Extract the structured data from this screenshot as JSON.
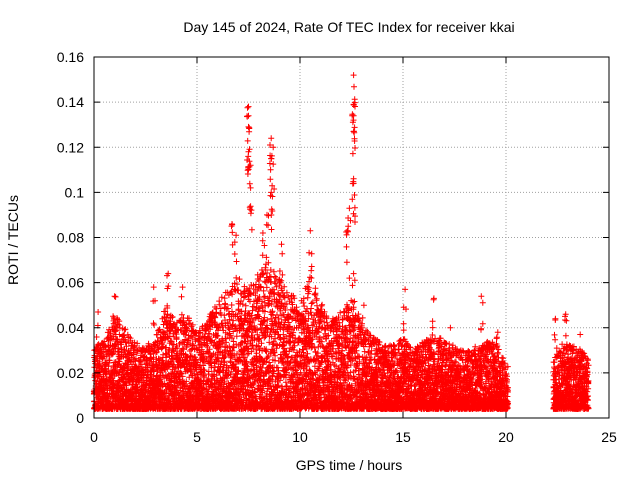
{
  "chart_data": {
    "type": "scatter",
    "title": "Day 145 of 2024, Rate Of TEC Index for receiver kkai",
    "xlabel": "GPS time / hours",
    "ylabel": "ROTI / TECUs",
    "xlim": [
      0,
      25
    ],
    "ylim": [
      0,
      0.16
    ],
    "xticks": [
      0,
      5,
      10,
      15,
      20,
      25
    ],
    "yticks": [
      0,
      0.02,
      0.04,
      0.06,
      0.08,
      0.1,
      0.12,
      0.14,
      0.16
    ],
    "xtick_labels": [
      "0",
      "5",
      "10",
      "15",
      "20",
      "25"
    ],
    "ytick_labels": [
      "0",
      "0.02",
      "0.04",
      "0.06",
      "0.08",
      "0.1",
      "0.12",
      "0.14",
      "0.16"
    ],
    "grid": true,
    "marker": "+",
    "color": "#ff0000",
    "data_gap_hours": [
      20.1,
      22.3
    ],
    "notable_points": [
      {
        "x": 12.6,
        "y": 0.152
      },
      {
        "x": 7.5,
        "y": 0.138
      },
      {
        "x": 12.6,
        "y": 0.139
      },
      {
        "x": 7.5,
        "y": 0.134
      },
      {
        "x": 12.6,
        "y": 0.134
      },
      {
        "x": 7.5,
        "y": 0.129
      },
      {
        "x": 12.6,
        "y": 0.127
      },
      {
        "x": 8.6,
        "y": 0.124
      },
      {
        "x": 8.7,
        "y": 0.12
      },
      {
        "x": 7.5,
        "y": 0.118
      },
      {
        "x": 8.6,
        "y": 0.115
      },
      {
        "x": 7.6,
        "y": 0.112
      },
      {
        "x": 7.6,
        "y": 0.102
      },
      {
        "x": 8.6,
        "y": 0.1
      },
      {
        "x": 12.6,
        "y": 0.106
      },
      {
        "x": 12.6,
        "y": 0.104
      },
      {
        "x": 12.4,
        "y": 0.093
      },
      {
        "x": 8.4,
        "y": 0.09
      },
      {
        "x": 6.7,
        "y": 0.086
      },
      {
        "x": 10.5,
        "y": 0.083
      },
      {
        "x": 12.3,
        "y": 0.083
      },
      {
        "x": 8.2,
        "y": 0.082
      },
      {
        "x": 6.9,
        "y": 0.081
      },
      {
        "x": 9.1,
        "y": 0.077
      },
      {
        "x": 12.4,
        "y": 0.062
      },
      {
        "x": 12.6,
        "y": 0.064
      },
      {
        "x": 3.6,
        "y": 0.064
      },
      {
        "x": 2.9,
        "y": 0.058
      },
      {
        "x": 4.3,
        "y": 0.058
      },
      {
        "x": 15.1,
        "y": 0.057
      },
      {
        "x": 1.0,
        "y": 0.054
      },
      {
        "x": 16.5,
        "y": 0.053
      },
      {
        "x": 18.8,
        "y": 0.054
      },
      {
        "x": 0.2,
        "y": 0.047
      },
      {
        "x": 13.1,
        "y": 0.05
      },
      {
        "x": 22.9,
        "y": 0.046
      },
      {
        "x": 22.4,
        "y": 0.044
      },
      {
        "x": 17.3,
        "y": 0.04
      },
      {
        "x": 19.6,
        "y": 0.038
      },
      {
        "x": 23.6,
        "y": 0.037
      }
    ],
    "envelope": [
      [
        0.0,
        0.03
      ],
      [
        0.3,
        0.036
      ],
      [
        0.5,
        0.034
      ],
      [
        1.0,
        0.046
      ],
      [
        1.5,
        0.04
      ],
      [
        2.0,
        0.034
      ],
      [
        2.5,
        0.032
      ],
      [
        3.0,
        0.036
      ],
      [
        3.5,
        0.05
      ],
      [
        4.0,
        0.042
      ],
      [
        4.5,
        0.046
      ],
      [
        5.0,
        0.038
      ],
      [
        5.5,
        0.044
      ],
      [
        6.0,
        0.052
      ],
      [
        6.5,
        0.058
      ],
      [
        7.0,
        0.062
      ],
      [
        7.5,
        0.058
      ],
      [
        8.0,
        0.064
      ],
      [
        8.5,
        0.07
      ],
      [
        9.0,
        0.062
      ],
      [
        9.5,
        0.056
      ],
      [
        10.0,
        0.054
      ],
      [
        10.5,
        0.064
      ],
      [
        11.0,
        0.052
      ],
      [
        11.5,
        0.044
      ],
      [
        12.0,
        0.048
      ],
      [
        12.5,
        0.056
      ],
      [
        13.0,
        0.042
      ],
      [
        13.5,
        0.036
      ],
      [
        14.0,
        0.034
      ],
      [
        14.5,
        0.032
      ],
      [
        15.0,
        0.036
      ],
      [
        15.5,
        0.03
      ],
      [
        16.0,
        0.034
      ],
      [
        16.5,
        0.038
      ],
      [
        17.0,
        0.034
      ],
      [
        17.5,
        0.032
      ],
      [
        18.0,
        0.03
      ],
      [
        18.5,
        0.032
      ],
      [
        19.0,
        0.034
      ],
      [
        19.5,
        0.034
      ],
      [
        20.0,
        0.024
      ],
      [
        22.3,
        0.026
      ],
      [
        22.8,
        0.034
      ],
      [
        23.3,
        0.032
      ],
      [
        23.7,
        0.03
      ],
      [
        24.0,
        0.026
      ]
    ],
    "baseline_range": [
      0.004,
      0.014
    ]
  }
}
